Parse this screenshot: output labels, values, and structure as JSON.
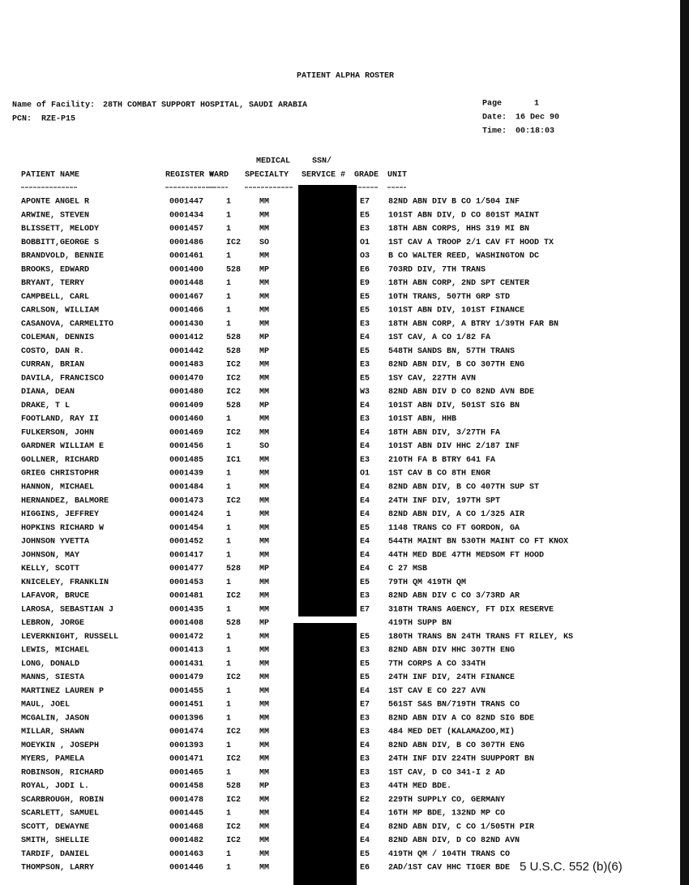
{
  "header": {
    "title": "PATIENT ALPHA ROSTER",
    "facility_label": "Name of Facility:",
    "facility": "28TH COMBAT SUPPORT HOSPITAL, SAUDI ARABIA",
    "pcn_label": "PCN:",
    "pcn": "RZE-P15",
    "page_label": "Page",
    "page": "1",
    "date_label": "Date:",
    "date": "16 Dec 90",
    "time_label": "Time:",
    "time": "00:18:03"
  },
  "table": {
    "columns": [
      {
        "label": "PATIENT NAME"
      },
      {
        "label": "REGISTER #"
      },
      {
        "label": "WARD"
      },
      {
        "top": "MEDICAL",
        "label": "SPECIALTY"
      },
      {
        "top": "SSN/",
        "label": "SERVICE #"
      },
      {
        "label": "GRADE"
      },
      {
        "label": "UNIT"
      }
    ],
    "rows": [
      [
        "APONTE ANGEL R",
        "0001447",
        "1",
        "MM",
        "E7",
        "82ND ABN DIV B CO 1/504 INF"
      ],
      [
        "ARWINE, STEVEN",
        "0001434",
        "1",
        "MM",
        "E5",
        "101ST ABN DIV, D CO 801ST MAINT"
      ],
      [
        "BLISSETT, MELODY",
        "0001457",
        "1",
        "MM",
        "E3",
        "18TH ABN CORPS, HHS 319 MI BN"
      ],
      [
        "BOBBITT,GEORGE S",
        "0001486",
        "IC2",
        "SO",
        "O1",
        "1ST CAV A TROOP 2/1 CAV FT HOOD TX"
      ],
      [
        "BRANDVOLD, BENNIE",
        "0001461",
        "1",
        "MM",
        "O3",
        "B CO WALTER REED, WASHINGTON DC"
      ],
      [
        "BROOKS, EDWARD",
        "0001400",
        "528",
        "MP",
        "E6",
        "703RD DIV, 7TH TRANS"
      ],
      [
        "BRYANT, TERRY",
        "0001448",
        "1",
        "MM",
        "E9",
        "18TH ABN CORP, 2ND SPT CENTER"
      ],
      [
        "CAMPBELL, CARL",
        "0001467",
        "1",
        "MM",
        "E5",
        "10TH TRANS, 507TH GRP STD"
      ],
      [
        "CARLSON, WILLIAM",
        "0001466",
        "1",
        "MM",
        "E5",
        "101ST ABN DIV, 101ST FINANCE"
      ],
      [
        "CASANOVA, CARMELITO",
        "0001430",
        "1",
        "MM",
        "E3",
        "18TH ABN CORP, A BTRY 1/39TH FAR BN"
      ],
      [
        "COLEMAN, DENNIS",
        "0001412",
        "528",
        "MP",
        "E4",
        "1ST CAV, A CO 1/82 FA"
      ],
      [
        "COSTO, DAN R.",
        "0001442",
        "528",
        "MP",
        "E5",
        "548TH SANDS BN, 57TH TRANS"
      ],
      [
        "CURRAN, BRIAN",
        "0001483",
        "IC2",
        "MM",
        "E3",
        "82ND ABN DIV, B CO 307TH ENG"
      ],
      [
        "DAVILA, FRANCISCO",
        "0001470",
        "IC2",
        "MM",
        "E5",
        "1SY CAV, 227TH AVN"
      ],
      [
        "DIANA, DEAN",
        "0001480",
        "IC2",
        "MM",
        "W3",
        "82ND ABN DIV D CO 82ND AVN BDE"
      ],
      [
        "DRAKE, T L",
        "0001409",
        "528",
        "MP",
        "E4",
        "101ST ABN DIV, 501ST SIG BN"
      ],
      [
        "FOOTLAND, RAY II",
        "0001460",
        "1",
        "MM",
        "E3",
        "101ST ABN, HHB"
      ],
      [
        "FULKERSON, JOHN",
        "0001469",
        "IC2",
        "MM",
        "E4",
        "18TH ABN DIV, 3/27TH FA"
      ],
      [
        "GARDNER WILLIAM E",
        "0001456",
        "1",
        "SO",
        "E4",
        "101ST ABN DIV HHC 2/187 INF"
      ],
      [
        "GOLLNER, RICHARD",
        "0001485",
        "IC1",
        "MM",
        "E3",
        "210TH FA B BTRY 641 FA"
      ],
      [
        "GRIEG CHRISTOPHR",
        "0001439",
        "1",
        "MM",
        "O1",
        "1ST CAV B CO 8TH ENGR"
      ],
      [
        "HANNON, MICHAEL",
        "0001484",
        "1",
        "MM",
        "E4",
        "82ND ABN DIV, B CO 407TH SUP ST"
      ],
      [
        "HERNANDEZ, BALMORE",
        "0001473",
        "IC2",
        "MM",
        "E4",
        "24TH INF DIV, 197TH SPT"
      ],
      [
        "HIGGINS, JEFFREY",
        "0001424",
        "1",
        "MM",
        "E4",
        "82ND ABN DIV, A CO 1/325 AIR"
      ],
      [
        "HOPKINS RICHARD W",
        "0001454",
        "1",
        "MM",
        "E5",
        "1148 TRANS CO FT GORDON, GA"
      ],
      [
        "JOHNSON YVETTA",
        "0001452",
        "1",
        "MM",
        "E4",
        "544TH MAINT BN 530TH MAINT CO FT KNOX"
      ],
      [
        "JOHNSON, MAY",
        "0001417",
        "1",
        "MM",
        "E4",
        "44TH MED BDE 47TH MEDSOM FT HOOD"
      ],
      [
        "KELLY, SCOTT",
        "0001477",
        "528",
        "MP",
        "E4",
        "C 27 MSB"
      ],
      [
        "KNICELEY, FRANKLIN",
        "0001453",
        "1",
        "MM",
        "E5",
        "79TH QM 419TH QM"
      ],
      [
        "LAFAVOR, BRUCE",
        "0001481",
        "IC2",
        "MM",
        "E3",
        "82ND ABN DIV C CO 3/73RD AR"
      ],
      [
        "LAROSA, SEBASTIAN J",
        "0001435",
        "1",
        "MM",
        "E7",
        "318TH TRANS AGENCY, FT DIX RESERVE"
      ],
      [
        "LEBRON, JORGE",
        "0001408",
        "528",
        "MP",
        null,
        "419TH SUPP BN"
      ],
      [
        "LEVERKNIGHT, RUSSELL",
        "0001472",
        "1",
        "MM",
        "E5",
        "180TH TRANS BN 24TH TRANS FT RILEY, KS"
      ],
      [
        "LEWIS, MICHAEL",
        "0001413",
        "1",
        "MM",
        "E3",
        "82ND ABN DIV HHC 307TH ENG"
      ],
      [
        "LONG, DONALD",
        "0001431",
        "1",
        "MM",
        "E5",
        "7TH CORPS A CO 334TH"
      ],
      [
        "MANNS, SIESTA",
        "0001479",
        "IC2",
        "MM",
        "E5",
        "24TH INF DIV, 24TH FINANCE"
      ],
      [
        "MARTINEZ LAUREN P",
        "0001455",
        "1",
        "MM",
        "E4",
        "1ST CAV E CO 227 AVN"
      ],
      [
        "MAUL, JOEL",
        "0001451",
        "1",
        "MM",
        "E7",
        "561ST S&S BN/719TH TRANS CO"
      ],
      [
        "MCGALIN, JASON",
        "0001396",
        "1",
        "MM",
        "E3",
        "82ND ABN DIV A CO 82ND SIG BDE"
      ],
      [
        "MILLAR, SHAWN",
        "0001474",
        "IC2",
        "MM",
        "E3",
        "484 MED DET  (KALAMAZOO,MI)"
      ],
      [
        "MOEYKIN , JOSEPH",
        "0001393",
        "1",
        "MM",
        "E4",
        "82ND ABN DIV, B CO 307TH ENG"
      ],
      [
        "MYERS, PAMELA",
        "0001471",
        "IC2",
        "MM",
        "E3",
        "24TH INF DIV 224TH SUUPPORT BN"
      ],
      [
        "ROBINSON, RICHARD",
        "0001465",
        "1",
        "MM",
        "E3",
        "1ST CAV, D CO 341-I 2 AD"
      ],
      [
        "ROYAL, JODI L.",
        "0001458",
        "528",
        "MP",
        "E3",
        "44TH MED BDE."
      ],
      [
        "SCARBROUGH, ROBIN",
        "0001478",
        "IC2",
        "MM",
        "E2",
        "229TH SUPPLY CO, GERMANY"
      ],
      [
        "SCARLETT, SAMUEL",
        "0001445",
        "1",
        "MM",
        "E4",
        "16TH MP BDE, 132ND MP CO"
      ],
      [
        "SCOTT, DEWAYNE",
        "0001468",
        "IC2",
        "MM",
        "E4",
        "82ND ABN DIV, C CO 1/505TH PIR"
      ],
      [
        "SMITH, SHELLIE",
        "0001482",
        "IC2",
        "MM",
        "E4",
        "82ND ABN DIV, D CO 82ND AVN"
      ],
      [
        "TARDIF, DANIEL",
        "0001463",
        "1",
        "MM",
        "E5",
        "419TH QM / 104TH TRANS CO"
      ],
      [
        "THOMPSON, LARRY",
        "0001446",
        "1",
        "MM",
        "E6",
        "2AD/1ST CAV HHC TIGER BDE"
      ]
    ]
  },
  "redaction_note": "5 U.S.C. 552 (b)(6)"
}
